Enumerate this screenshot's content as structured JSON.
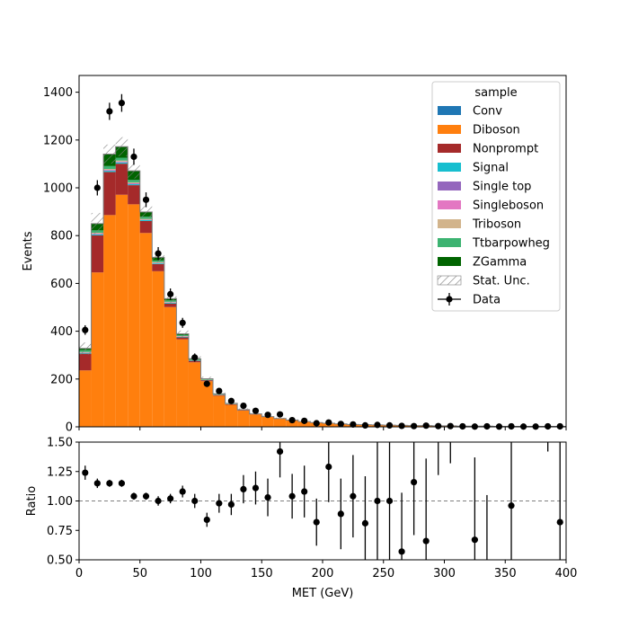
{
  "chart_data": {
    "type": "bar",
    "subtype": "stacked-histogram-with-ratio-panel",
    "xlabel": "MET (GeV)",
    "ylabel": "Events",
    "ratio_ylabel": "Ratio",
    "xlim": [
      0,
      400
    ],
    "ylim": [
      0,
      1470
    ],
    "ratio_ylim": [
      0.5,
      1.5
    ],
    "bin_width": 10,
    "x_ticks": [
      "0",
      "50",
      "100",
      "150",
      "200",
      "250",
      "300",
      "350",
      "400"
    ],
    "y_ticks": [
      "0",
      "200",
      "400",
      "600",
      "800",
      "1000",
      "1200",
      "1400"
    ],
    "ratio_ticks": [
      "0.50",
      "0.75",
      "1.00",
      "1.25",
      "1.50"
    ],
    "legend_title": "sample",
    "legend_position": "top-right",
    "colors": {
      "Conv": "#1f77b4",
      "Diboson": "#ff7f0e",
      "Nonprompt": "#a52a2a",
      "Signal": "#17becf",
      "Single top": "#9467bd",
      "Singleboson": "#e377c2",
      "Triboson": "#d2b48c",
      "Ttbarpowheg": "#3cb371",
      "ZGamma": "#006400"
    },
    "series": [
      {
        "name": "Conv",
        "values": [
          1,
          1,
          1,
          1,
          1,
          1,
          1,
          1,
          1,
          0,
          1,
          0,
          0,
          0,
          0,
          0,
          0,
          0,
          0,
          0,
          0,
          0,
          0,
          0,
          0,
          0,
          0,
          0,
          0,
          0,
          0,
          0,
          0,
          0,
          0,
          0,
          0,
          0,
          0,
          0
        ]
      },
      {
        "name": "Diboson",
        "values": [
          235,
          645,
          885,
          970,
          930,
          810,
          650,
          500,
          365,
          270,
          190,
          130,
          92,
          68,
          52,
          42,
          34,
          27,
          22,
          18,
          15,
          12,
          10,
          9,
          8,
          7,
          6,
          5,
          5,
          4,
          4,
          3,
          3,
          3,
          2,
          2,
          2,
          2,
          2,
          2
        ]
      },
      {
        "name": "Nonprompt",
        "values": [
          70,
          155,
          180,
          130,
          80,
          50,
          30,
          15,
          8,
          6,
          4,
          3,
          2,
          2,
          1,
          1,
          1,
          1,
          0,
          0,
          0,
          0,
          0,
          0,
          0,
          0,
          0,
          0,
          0,
          0,
          0,
          0,
          0,
          0,
          0,
          0,
          0,
          0,
          0,
          0
        ]
      },
      {
        "name": "Signal",
        "values": [
          3,
          4,
          5,
          5,
          4,
          4,
          3,
          3,
          2,
          2,
          1,
          1,
          1,
          1,
          0,
          0,
          0,
          0,
          0,
          0,
          0,
          0,
          0,
          0,
          0,
          0,
          0,
          0,
          0,
          0,
          0,
          0,
          0,
          0,
          0,
          0,
          0,
          0,
          0,
          0
        ]
      },
      {
        "name": "Single top",
        "values": [
          1,
          2,
          2,
          2,
          2,
          1,
          1,
          1,
          1,
          0,
          0,
          0,
          0,
          0,
          0,
          0,
          0,
          0,
          0,
          0,
          0,
          0,
          0,
          0,
          0,
          0,
          0,
          0,
          0,
          0,
          0,
          0,
          0,
          0,
          0,
          0,
          0,
          0,
          0,
          0
        ]
      },
      {
        "name": "Singleboson",
        "values": [
          1,
          2,
          2,
          2,
          2,
          1,
          1,
          1,
          1,
          0,
          0,
          0,
          0,
          0,
          0,
          0,
          0,
          0,
          0,
          0,
          0,
          0,
          0,
          0,
          0,
          0,
          0,
          0,
          0,
          0,
          0,
          0,
          0,
          0,
          0,
          0,
          0,
          0,
          0,
          0
        ]
      },
      {
        "name": "Triboson",
        "values": [
          2,
          3,
          4,
          4,
          4,
          3,
          3,
          2,
          2,
          1,
          1,
          1,
          1,
          0,
          0,
          0,
          0,
          0,
          0,
          0,
          0,
          0,
          0,
          0,
          0,
          0,
          0,
          0,
          0,
          0,
          0,
          0,
          0,
          0,
          0,
          0,
          0,
          0,
          0,
          0
        ]
      },
      {
        "name": "Ttbarpowheg",
        "values": [
          8,
          10,
          12,
          12,
          10,
          9,
          7,
          6,
          4,
          3,
          2,
          2,
          1,
          1,
          1,
          0,
          0,
          0,
          0,
          0,
          0,
          0,
          0,
          0,
          0,
          0,
          0,
          0,
          0,
          0,
          0,
          0,
          0,
          0,
          0,
          0,
          0,
          0,
          0,
          0
        ]
      },
      {
        "name": "ZGamma",
        "values": [
          7,
          28,
          50,
          46,
          38,
          20,
          13,
          7,
          5,
          3,
          2,
          1,
          1,
          0,
          0,
          0,
          0,
          0,
          0,
          0,
          0,
          0,
          0,
          0,
          0,
          0,
          0,
          0,
          0,
          0,
          0,
          0,
          0,
          0,
          0,
          0,
          0,
          0,
          0,
          0
        ]
      }
    ],
    "stat_unc": {
      "name": "Stat. Unc.",
      "half_widths": [
        25,
        45,
        40,
        40,
        32,
        25,
        22,
        18,
        14,
        11,
        9,
        7,
        6,
        5,
        4,
        4,
        3,
        3,
        3,
        2,
        2,
        2,
        2,
        2,
        2,
        2,
        2,
        2,
        2,
        1,
        1,
        1,
        1,
        1,
        1,
        1,
        1,
        1,
        1,
        1
      ]
    },
    "data": {
      "name": "Data",
      "values": [
        405,
        1000,
        1320,
        1355,
        1130,
        950,
        725,
        555,
        435,
        290,
        180,
        150,
        108,
        88,
        67,
        50,
        52,
        28,
        25,
        15,
        18,
        12,
        10,
        6,
        8,
        6,
        4,
        3,
        5,
        3,
        3,
        2,
        1,
        2,
        1,
        2,
        1,
        1,
        2,
        2
      ],
      "errors": [
        20,
        32,
        36,
        37,
        34,
        31,
        27,
        24,
        21,
        17,
        13,
        12,
        10,
        9,
        8,
        7,
        7,
        5,
        5,
        4,
        4,
        3,
        3,
        2,
        3,
        2,
        2,
        2,
        2,
        2,
        2,
        1,
        1,
        1,
        1,
        1,
        1,
        1,
        1,
        1
      ]
    },
    "ratio": {
      "values": [
        1.24,
        1.15,
        1.15,
        1.15,
        1.04,
        1.04,
        1.0,
        1.02,
        1.08,
        1.0,
        0.84,
        0.98,
        0.97,
        1.1,
        1.11,
        1.03,
        1.42,
        1.04,
        1.08,
        0.82,
        1.29,
        0.89,
        1.04,
        0.81,
        1.0,
        1.0,
        0.57,
        1.16,
        0.66,
        null,
        null,
        null,
        0.67,
        null,
        null,
        0.96,
        null,
        null,
        null,
        0.82
      ],
      "errors": [
        0.06,
        0.04,
        0.03,
        0.03,
        0.03,
        0.03,
        0.04,
        0.04,
        0.05,
        0.06,
        0.06,
        0.08,
        0.09,
        0.12,
        0.14,
        0.16,
        0.22,
        0.19,
        0.22,
        0.2,
        0.3,
        0.3,
        0.35,
        0.4,
        0.5,
        0.5,
        0.5,
        0.45,
        0.7,
        null,
        null,
        null,
        0.7,
        null,
        null,
        0.7,
        null,
        null,
        null,
        0.7
      ]
    }
  }
}
